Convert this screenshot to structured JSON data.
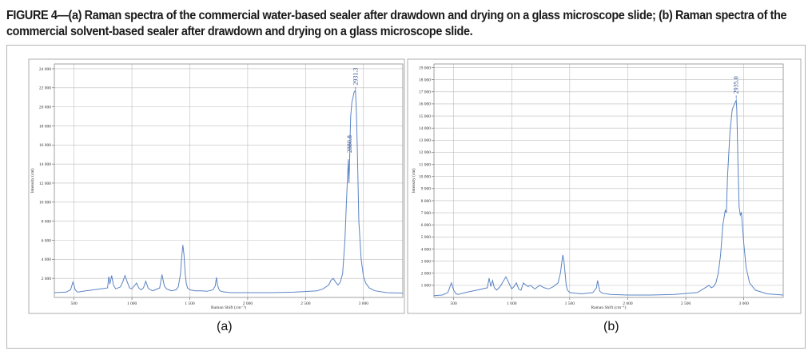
{
  "caption_line1": "FIGURE 4—(a) Raman spectra of the commercial water-based sealer after drawdown and drying on a glass microscope slide; (b) Raman spectra of the",
  "caption_line2": "commercial solvent-based sealer after drawdown and drying on a glass microscope slide.",
  "colors": {
    "line": "#5b84c4",
    "grid": "#bdbdbd",
    "frame": "#8a8a8a"
  },
  "chart_data": [
    {
      "type": "line",
      "panel_label": "(a)",
      "xlabel": "Raman Shift (cm⁻¹)",
      "ylabel": "Intensity (cnt)",
      "xlim": [
        330,
        3340
      ],
      "ylim": [
        0,
        24500
      ],
      "x_ticks": [
        500,
        1000,
        1500,
        2000,
        2500,
        3000
      ],
      "x_tick_labels": [
        "500",
        "1 000",
        "1 500",
        "2 000",
        "2 500",
        "3 000"
      ],
      "y_ticks": [
        2000,
        4000,
        6000,
        8000,
        10000,
        12000,
        14000,
        16000,
        18000,
        20000,
        22000,
        24000
      ],
      "y_tick_labels": [
        "2 000",
        "4 000",
        "6 000",
        "8 000",
        "10 000",
        "12 000",
        "14 000",
        "16 000",
        "18 000",
        "20 000",
        "22 000",
        "24 000"
      ],
      "grid": true,
      "annotations": [
        {
          "x": 2880.8,
          "y": 14500,
          "text": "2880.8"
        },
        {
          "x": 2931.3,
          "y": 21600,
          "text": "2931.3"
        }
      ],
      "series": [
        {
          "x": [
            330,
            430,
            470,
            490,
            500,
            510,
            530,
            600,
            700,
            790,
            800,
            810,
            825,
            840,
            860,
            900,
            920,
            940,
            960,
            980,
            1000,
            1020,
            1040,
            1060,
            1080,
            1100,
            1120,
            1140,
            1160,
            1180,
            1200,
            1240,
            1260,
            1280,
            1300,
            1320,
            1340,
            1380,
            1400,
            1420,
            1430,
            1440,
            1450,
            1460,
            1470,
            1480,
            1500,
            1550,
            1600,
            1650,
            1700,
            1720,
            1730,
            1740,
            1750,
            1760,
            1780,
            1850,
            2000,
            2200,
            2400,
            2600,
            2650,
            2700,
            2720,
            2740,
            2760,
            2780,
            2800,
            2820,
            2840,
            2850,
            2860,
            2870,
            2875,
            2880,
            2885,
            2890,
            2900,
            2910,
            2920,
            2931,
            2940,
            2950,
            2960,
            2980,
            3000,
            3020,
            3050,
            3100,
            3200,
            3340
          ],
          "y": [
            500,
            550,
            800,
            1600,
            1300,
            800,
            550,
            700,
            850,
            1000,
            2200,
            1400,
            2300,
            1300,
            900,
            1100,
            1600,
            2300,
            1600,
            1000,
            900,
            1200,
            1500,
            1000,
            800,
            1000,
            1700,
            1000,
            800,
            700,
            800,
            1000,
            2400,
            1200,
            900,
            800,
            700,
            800,
            1100,
            2500,
            4200,
            5500,
            4500,
            2500,
            1500,
            1000,
            800,
            700,
            700,
            650,
            800,
            1200,
            2100,
            1300,
            900,
            700,
            600,
            500,
            500,
            500,
            550,
            700,
            900,
            1300,
            1800,
            2000,
            1600,
            1300,
            1600,
            2500,
            6000,
            9000,
            12000,
            14500,
            12000,
            14000,
            17000,
            19000,
            20500,
            21000,
            21600,
            21700,
            19000,
            14000,
            8000,
            4000,
            2200,
            1500,
            1000,
            700,
            500,
            450
          ]
        }
      ]
    },
    {
      "type": "line",
      "panel_label": "(b)",
      "xlabel": "Raman Shift (cm⁻¹)",
      "ylabel": "Intensity (cnt)",
      "xlim": [
        330,
        3340
      ],
      "ylim": [
        0,
        19300
      ],
      "x_ticks": [
        500,
        1000,
        1500,
        2000,
        2500,
        3000
      ],
      "x_tick_labels": [
        "500",
        "1 000",
        "1 500",
        "2 000",
        "2 500",
        "3 000"
      ],
      "y_ticks": [
        1000,
        2000,
        3000,
        4000,
        5000,
        6000,
        7000,
        8000,
        9000,
        10000,
        11000,
        12000,
        13000,
        14000,
        15000,
        16000,
        17000,
        18000,
        19000
      ],
      "y_tick_labels": [
        "1 000",
        "2 000",
        "3 000",
        "4 000",
        "5 000",
        "6 000",
        "7 000",
        "8 000",
        "9 000",
        "10 000",
        "11 000",
        "12 000",
        "13 000",
        "14 000",
        "15 000",
        "16 000",
        "17 000",
        "18 000",
        "19 000"
      ],
      "grid": true,
      "annotations": [
        {
          "x": 2935.0,
          "y": 16300,
          "text": "2935.0"
        }
      ],
      "series": [
        {
          "x": [
            330,
            400,
            450,
            480,
            500,
            520,
            540,
            600,
            700,
            790,
            805,
            820,
            835,
            850,
            870,
            900,
            950,
            980,
            1000,
            1020,
            1040,
            1060,
            1080,
            1100,
            1140,
            1160,
            1200,
            1240,
            1280,
            1320,
            1360,
            1400,
            1420,
            1440,
            1450,
            1460,
            1470,
            1480,
            1500,
            1550,
            1600,
            1650,
            1700,
            1730,
            1740,
            1750,
            1760,
            1780,
            1850,
            2000,
            2200,
            2400,
            2600,
            2650,
            2700,
            2720,
            2740,
            2760,
            2780,
            2800,
            2820,
            2840,
            2850,
            2860,
            2880,
            2900,
            2920,
            2935,
            2940,
            2950,
            2960,
            2970,
            2980,
            3000,
            3020,
            3050,
            3100,
            3200,
            3340
          ],
          "y": [
            150,
            200,
            400,
            1200,
            600,
            300,
            250,
            400,
            600,
            800,
            1600,
            900,
            1400,
            800,
            600,
            900,
            1700,
            1100,
            700,
            900,
            1200,
            700,
            600,
            1200,
            900,
            1000,
            700,
            1000,
            800,
            700,
            900,
            1200,
            2000,
            3500,
            3000,
            2000,
            1000,
            600,
            400,
            350,
            300,
            350,
            400,
            800,
            1400,
            900,
            500,
            350,
            250,
            200,
            200,
            250,
            400,
            700,
            1000,
            800,
            900,
            1200,
            2000,
            3500,
            6000,
            7200,
            7000,
            10000,
            13500,
            15500,
            16000,
            16300,
            15500,
            11000,
            7500,
            6800,
            7000,
            4500,
            2500,
            1200,
            600,
            300,
            200
          ]
        }
      ]
    }
  ]
}
